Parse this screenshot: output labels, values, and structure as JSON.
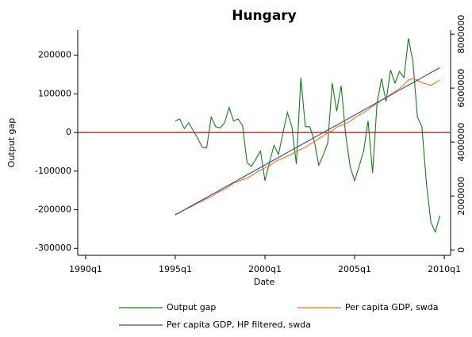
{
  "chart_data": {
    "type": "line",
    "title": "Hungary",
    "x_label": "Date",
    "y_label": "Output gap",
    "x": [
      1995,
      1995.25,
      1995.5,
      1995.75,
      1996,
      1996.25,
      1996.5,
      1996.75,
      1997,
      1997.25,
      1997.5,
      1997.75,
      1998,
      1998.25,
      1998.5,
      1998.75,
      1999,
      1999.25,
      1999.5,
      1999.75,
      2000,
      2000.25,
      2000.5,
      2000.75,
      2001,
      2001.25,
      2001.5,
      2001.75,
      2002,
      2002.25,
      2002.5,
      2002.75,
      2003,
      2003.25,
      2003.5,
      2003.75,
      2004,
      2004.25,
      2004.5,
      2004.75,
      2005,
      2005.25,
      2005.5,
      2005.75,
      2006,
      2006.25,
      2006.5,
      2006.75,
      2007,
      2007.25,
      2007.5,
      2007.75,
      2008,
      2008.25,
      2008.5,
      2008.75,
      2009,
      2009.25,
      2009.5,
      2009.75
    ],
    "series": [
      {
        "name": "Output gap",
        "color": "#1a7a1a",
        "values": [
          30000,
          35000,
          10000,
          25000,
          5000,
          -15000,
          -38000,
          -40000,
          40000,
          15000,
          12000,
          25000,
          65000,
          30000,
          35000,
          18000,
          -78000,
          -88000,
          -68000,
          -48000,
          -125000,
          -78000,
          -33000,
          -57000,
          -2000,
          52000,
          15000,
          -82000,
          142000,
          15000,
          15000,
          -22000,
          -85000,
          -58000,
          -27000,
          128000,
          55000,
          121000,
          -6000,
          -88000,
          -125000,
          -88000,
          -48000,
          30000,
          -105000,
          76000,
          140000,
          80000,
          162000,
          128000,
          158000,
          142000,
          244000,
          183000,
          40000,
          15000,
          -130000,
          -232000,
          -258000,
          -215000
        ]
      },
      {
        "name": "Per capita GDP, swda",
        "color": "#ff6a1a",
        "axis": "y2",
        "values": [
          1320000,
          1390000,
          1480000,
          1560000,
          1640000,
          1740000,
          1810000,
          1900000,
          1970000,
          2090000,
          2180000,
          2250000,
          2360000,
          2480000,
          2540000,
          2610000,
          2660000,
          2760000,
          2870000,
          2960000,
          3040000,
          3120000,
          3250000,
          3340000,
          3400000,
          3480000,
          3560000,
          3650000,
          3730000,
          3800000,
          3920000,
          4020000,
          4130000,
          4230000,
          4340000,
          4420000,
          4560000,
          4620000,
          4690000,
          4770000,
          4900000,
          5000000,
          5090000,
          5200000,
          5340000,
          5420000,
          5560000,
          5620000,
          5760000,
          5880000,
          5980000,
          6130000,
          6300000,
          6350000,
          6300000,
          6200000,
          6150000,
          6100000,
          6200000,
          6300000
        ]
      },
      {
        "name": "Per capita GDP, HP filtered, swda",
        "color": "#2a4a9a",
        "axis": "y2",
        "values": [
          1300000,
          1392500,
          1485000,
          1577500,
          1670000,
          1762500,
          1855000,
          1947500,
          2040000,
          2132500,
          2225000,
          2317500,
          2410000,
          2502500,
          2595000,
          2687500,
          2780000,
          2872500,
          2965000,
          3057500,
          3150000,
          3242500,
          3335000,
          3427500,
          3520000,
          3612500,
          3705000,
          3797500,
          3890000,
          3982500,
          4075000,
          4167500,
          4260000,
          4352500,
          4445000,
          4537500,
          4630000,
          4722500,
          4815000,
          4907500,
          5000000,
          5092500,
          5185000,
          5277500,
          5370000,
          5462500,
          5555000,
          5647500,
          5740000,
          5832500,
          5925000,
          6017500,
          6110000,
          6202500,
          6295000,
          6387500,
          6480000,
          6572500,
          6665000,
          6757500
        ]
      }
    ],
    "xlim": [
      1989.56,
      2010.35
    ],
    "xticks": [
      {
        "value": 1990,
        "label": "1990q1"
      },
      {
        "value": 1995,
        "label": "1995q1"
      },
      {
        "value": 2000,
        "label": "2000q1"
      },
      {
        "value": 2005,
        "label": "2005q1"
      },
      {
        "value": 2010,
        "label": "2010q1"
      }
    ],
    "ylim": [
      -318000,
      265000
    ],
    "yticks": [
      -300000,
      -200000,
      -100000,
      0,
      100000,
      200000
    ],
    "y2lim": [
      -200000,
      8150000
    ],
    "y2ticks": [
      0,
      2000000,
      4000000,
      6000000,
      8000000
    ],
    "reference_line": {
      "value": 0,
      "color": "#c00000"
    },
    "legend": "bottom"
  }
}
